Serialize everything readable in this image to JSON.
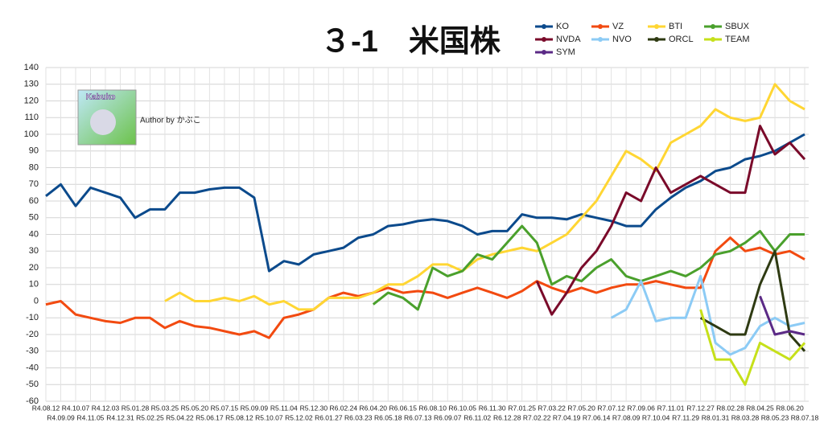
{
  "chart_data": {
    "type": "line",
    "title": "３-1　米国株",
    "logo_text": "Kabuko",
    "author": "Author by かぶこ",
    "categories": [
      "R4.08.12",
      "R4.09.09",
      "R4.10.07",
      "R4.11.05",
      "R4.12.03",
      "R4.12.31",
      "R5.01.28",
      "R5.02.25",
      "R5.03.25",
      "R5.04.22",
      "R5.05.20",
      "R5.06.17",
      "R5.07.15",
      "R5.08.12",
      "R5.09.09",
      "R5.10.07",
      "R5.11.04",
      "R5.12.02",
      "R5.12.30",
      "R6.01.27",
      "R6.02.24",
      "R6.03.23",
      "R6.04.20",
      "R6.05.18",
      "R6.06.15",
      "R6.07.13",
      "R6.08.10",
      "R6.09.07",
      "R6.10.05",
      "R6.11.02",
      "R6.11.30",
      "R6.12.28",
      "R7.01.25",
      "R7.02.22",
      "R7.03.22",
      "R7.04.19",
      "R7.05.20",
      "R7.06.14",
      "R7.07.12",
      "R7.08.09",
      "R7.09.06",
      "R7.10.04",
      "R7.11.01",
      "R7.11.29",
      "R7.12.27",
      "R8.01.31",
      "R8.02.28",
      "R8.03.28",
      "R8.04.25",
      "R8.05.23",
      "R8.06.20",
      "R8.07.18"
    ],
    "series": [
      {
        "name": "KO",
        "color": "#0b4a8c",
        "values": [
          63,
          70,
          57,
          68,
          65,
          62,
          50,
          55,
          55,
          65,
          65,
          67,
          68,
          68,
          62,
          18,
          24,
          22,
          28,
          30,
          32,
          38,
          40,
          45,
          46,
          48,
          49,
          48,
          45,
          40,
          42,
          42,
          52,
          50,
          50,
          49,
          52,
          50,
          48,
          45,
          45,
          55,
          62,
          68,
          72,
          78,
          80,
          85,
          87,
          90,
          95,
          100
        ]
      },
      {
        "name": "VZ",
        "color": "#f24a10",
        "values": [
          -2,
          0,
          -8,
          -10,
          -12,
          -13,
          -10,
          -10,
          -16,
          -12,
          -15,
          -16,
          -18,
          -20,
          -18,
          -22,
          -10,
          -8,
          -5,
          2,
          5,
          3,
          5,
          8,
          5,
          6,
          5,
          2,
          5,
          8,
          5,
          2,
          6,
          12,
          8,
          5,
          8,
          5,
          8,
          10,
          10,
          12,
          10,
          8,
          8,
          30,
          38,
          30,
          32,
          28,
          30,
          25
        ]
      },
      {
        "name": "BTI",
        "color": "#ffd633",
        "values": [
          null,
          null,
          null,
          null,
          null,
          null,
          null,
          null,
          0,
          5,
          0,
          0,
          2,
          0,
          3,
          -2,
          0,
          -5,
          -5,
          2,
          2,
          2,
          5,
          10,
          10,
          15,
          22,
          22,
          18,
          25,
          28,
          30,
          32,
          30,
          35,
          40,
          50,
          60,
          75,
          90,
          85,
          78,
          95,
          100,
          105,
          115,
          110,
          108,
          110,
          130,
          120,
          115
        ]
      },
      {
        "name": "SBUX",
        "color": "#4aa02c",
        "values": [
          null,
          null,
          null,
          null,
          null,
          null,
          null,
          null,
          null,
          null,
          null,
          null,
          null,
          null,
          null,
          null,
          null,
          null,
          null,
          null,
          null,
          null,
          -2,
          5,
          2,
          -5,
          20,
          15,
          18,
          28,
          25,
          35,
          45,
          35,
          10,
          15,
          12,
          20,
          25,
          15,
          12,
          15,
          18,
          15,
          20,
          28,
          30,
          35,
          42,
          30,
          40,
          40
        ]
      },
      {
        "name": "NVDA",
        "color": "#7a0a2a",
        "values": [
          null,
          null,
          null,
          null,
          null,
          null,
          null,
          null,
          null,
          null,
          null,
          null,
          null,
          null,
          null,
          null,
          null,
          null,
          null,
          null,
          null,
          null,
          null,
          null,
          null,
          null,
          null,
          null,
          null,
          null,
          null,
          null,
          null,
          12,
          -8,
          5,
          20,
          30,
          45,
          65,
          60,
          80,
          65,
          70,
          75,
          70,
          65,
          65,
          105,
          88,
          95,
          85
        ]
      },
      {
        "name": "NVO",
        "color": "#8ccbf5",
        "values": [
          null,
          null,
          null,
          null,
          null,
          null,
          null,
          null,
          null,
          null,
          null,
          null,
          null,
          null,
          null,
          null,
          null,
          null,
          null,
          null,
          null,
          null,
          null,
          null,
          null,
          null,
          null,
          null,
          null,
          null,
          null,
          null,
          null,
          null,
          null,
          null,
          null,
          null,
          -10,
          -5,
          12,
          -12,
          -10,
          -10,
          15,
          -25,
          -32,
          -28,
          -15,
          -10,
          -15,
          -13
        ]
      },
      {
        "name": "ORCL",
        "color": "#2e3a12",
        "values": [
          null,
          null,
          null,
          null,
          null,
          null,
          null,
          null,
          null,
          null,
          null,
          null,
          null,
          null,
          null,
          null,
          null,
          null,
          null,
          null,
          null,
          null,
          null,
          null,
          null,
          null,
          null,
          null,
          null,
          null,
          null,
          null,
          null,
          null,
          null,
          null,
          null,
          null,
          null,
          null,
          null,
          null,
          null,
          null,
          -10,
          -15,
          -20,
          -20,
          10,
          30,
          -20,
          -30
        ]
      },
      {
        "name": "TEAM",
        "color": "#c6e01a",
        "values": [
          null,
          null,
          null,
          null,
          null,
          null,
          null,
          null,
          null,
          null,
          null,
          null,
          null,
          null,
          null,
          null,
          null,
          null,
          null,
          null,
          null,
          null,
          null,
          null,
          null,
          null,
          null,
          null,
          null,
          null,
          null,
          null,
          null,
          null,
          null,
          null,
          null,
          null,
          null,
          null,
          null,
          null,
          null,
          null,
          -5,
          -35,
          -35,
          -50,
          -25,
          -30,
          -35,
          -25
        ]
      },
      {
        "name": "SYM",
        "color": "#5b2a86",
        "values": [
          null,
          null,
          null,
          null,
          null,
          null,
          null,
          null,
          null,
          null,
          null,
          null,
          null,
          null,
          null,
          null,
          null,
          null,
          null,
          null,
          null,
          null,
          null,
          null,
          null,
          null,
          null,
          null,
          null,
          null,
          null,
          null,
          null,
          null,
          null,
          null,
          null,
          null,
          null,
          null,
          null,
          null,
          null,
          null,
          null,
          null,
          null,
          null,
          3,
          -20,
          -18,
          -20
        ]
      }
    ],
    "ylim": [
      -60,
      140
    ],
    "yticks": [
      -60,
      -50,
      -40,
      -30,
      -20,
      -10,
      0,
      10,
      20,
      30,
      40,
      50,
      60,
      70,
      80,
      90,
      100,
      110,
      120,
      130,
      140
    ],
    "grid": true
  }
}
